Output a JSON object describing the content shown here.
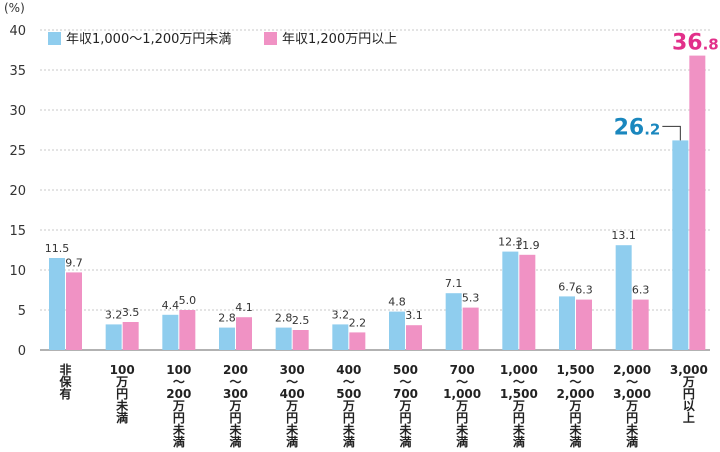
{
  "chart_data": {
    "type": "bar",
    "y_unit": "(%)",
    "ylim": [
      0,
      40
    ],
    "yticks": [
      0,
      5,
      10,
      15,
      20,
      25,
      30,
      35,
      40
    ],
    "grid": true,
    "legend_position": "top-left",
    "categories": [
      [
        "非",
        "保",
        "有"
      ],
      [
        "100",
        "万",
        "円",
        "未",
        "満"
      ],
      [
        "100",
        "〜",
        "200",
        "万",
        "円",
        "未",
        "満"
      ],
      [
        "200",
        "〜",
        "300",
        "万",
        "円",
        "未",
        "満"
      ],
      [
        "300",
        "〜",
        "400",
        "万",
        "円",
        "未",
        "満"
      ],
      [
        "400",
        "〜",
        "500",
        "万",
        "円",
        "未",
        "満"
      ],
      [
        "500",
        "〜",
        "700",
        "万",
        "円",
        "未",
        "満"
      ],
      [
        "700",
        "〜",
        "1,000",
        "万",
        "円",
        "未",
        "満"
      ],
      [
        "1,000",
        "〜",
        "1,500",
        "万",
        "円",
        "未",
        "満"
      ],
      [
        "1,500",
        "〜",
        "2,000",
        "万",
        "円",
        "未",
        "満"
      ],
      [
        "2,000",
        "〜",
        "3,000",
        "万",
        "円",
        "未",
        "満"
      ],
      [
        "3,000",
        "万",
        "円",
        "以",
        "上"
      ]
    ],
    "series": [
      {
        "name": "年収1,000〜1,200万円未満",
        "color": "#8fcdee",
        "values": [
          11.5,
          3.2,
          4.4,
          2.8,
          2.8,
          3.2,
          4.8,
          7.1,
          12.3,
          6.7,
          13.1,
          26.2
        ],
        "labels": [
          "11.5",
          "3.2",
          "4.4",
          "2.8",
          "2.8",
          "3.2",
          "4.8",
          "7.1",
          "12.3",
          "6.7",
          "13.1",
          ""
        ]
      },
      {
        "name": "年収1,200万円以上",
        "color": "#f092c4",
        "values": [
          9.7,
          3.5,
          5.0,
          4.1,
          2.5,
          2.2,
          3.1,
          5.3,
          11.9,
          6.3,
          6.3,
          36.8
        ],
        "labels": [
          "9.7",
          "3.5",
          "5.0",
          "4.1",
          "2.5",
          "2.2",
          "3.1",
          "5.3",
          "11.9",
          "6.3",
          "6.3",
          ""
        ]
      }
    ],
    "callouts": [
      {
        "series": 0,
        "category": 11,
        "int": "26",
        "dec": ".2",
        "color": "#1a87be"
      },
      {
        "series": 1,
        "category": 11,
        "int": "36",
        "dec": ".8",
        "color": "#e2308a"
      }
    ]
  }
}
